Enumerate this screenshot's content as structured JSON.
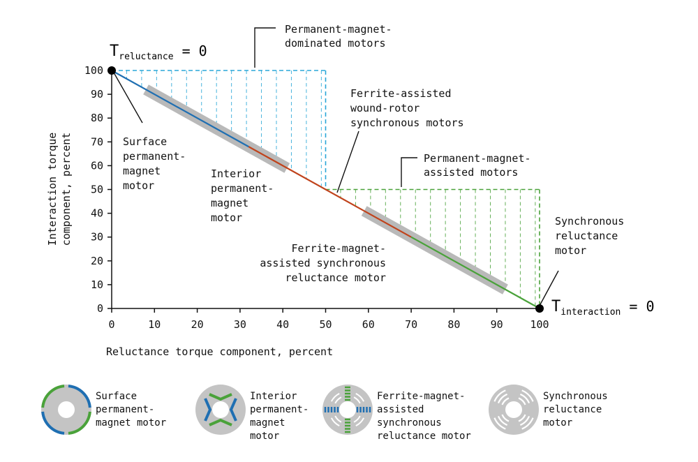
{
  "chart_data": {
    "type": "line",
    "xlabel": "Reluctance torque component, percent",
    "ylabel": "Interaction torque component, percent",
    "xlim": [
      0,
      100
    ],
    "ylim": [
      0,
      100
    ],
    "x_ticks": [
      0,
      10,
      20,
      30,
      40,
      50,
      60,
      70,
      80,
      90,
      100
    ],
    "y_ticks": [
      0,
      10,
      20,
      30,
      40,
      50,
      60,
      70,
      80,
      90,
      100
    ],
    "grid": false,
    "main_line": {
      "points": [
        [
          0,
          100
        ],
        [
          100,
          0
        ]
      ],
      "segments": [
        {
          "from": 0,
          "to": 32,
          "color": "#1f6fb2"
        },
        {
          "from": 32,
          "to": 59,
          "color": "#c0431c"
        },
        {
          "from": 59,
          "to": 70,
          "color": "#c0431c"
        },
        {
          "from": 70,
          "to": 100,
          "color": "#4aa23a"
        }
      ]
    },
    "operating_bands": [
      {
        "x_start": 8,
        "x_end": 41,
        "name": "interior-pm-band"
      },
      {
        "x_start": 59,
        "x_end": 92,
        "name": "ferrite-band"
      }
    ],
    "regions": [
      {
        "label": [
          "Permanent-magnet-",
          "dominated motors"
        ],
        "color": "#2aa7d8",
        "x_range": [
          0,
          50
        ],
        "y_top": 100,
        "hatch_x": [
          3.5,
          7,
          10.5,
          14,
          17.5,
          21,
          24.5,
          28,
          31.5,
          35,
          38.5,
          42,
          45.5,
          49
        ]
      },
      {
        "label": [
          "Permanent-magnet-",
          "assisted motors"
        ],
        "color": "#4aa23a",
        "x_range": [
          50,
          100
        ],
        "y_top": 50,
        "hatch_x": [
          53.5,
          57,
          60.5,
          64,
          67.5,
          71,
          74.5,
          78,
          81.5,
          85,
          88.5,
          92,
          95.5,
          99
        ]
      }
    ],
    "endpoints": [
      {
        "x": 0,
        "y": 100,
        "label_main": "T",
        "label_sub": "reluctance",
        "label_suffix": " = 0"
      },
      {
        "x": 100,
        "y": 0,
        "label_main": "T",
        "label_sub": "interaction",
        "label_suffix": " = 0"
      }
    ],
    "annotations": [
      {
        "name": "surface-pm-annotation",
        "lines": [
          "Surface",
          "permanent-",
          "magnet",
          "motor"
        ],
        "color": "#111111"
      },
      {
        "name": "interior-pm-annotation",
        "lines": [
          "Interior",
          "permanent-",
          "magnet",
          "motor"
        ],
        "color": "#111111"
      },
      {
        "name": "ferrite-wound-annotation",
        "lines": [
          "Ferrite-assisted",
          "wound-rotor",
          "synchronous motors"
        ],
        "color": "#c0431c"
      },
      {
        "name": "ferrite-magnet-annotation",
        "lines": [
          "Ferrite-magnet-",
          "assisted synchronous",
          "reluctance motor"
        ],
        "color": "#111111"
      },
      {
        "name": "synchronous-reluctance-annotation",
        "lines": [
          "Synchronous",
          "reluctance",
          "motor"
        ],
        "color": "#111111"
      }
    ]
  },
  "legend": [
    {
      "icon": "surface-pm-rotor-icon",
      "lines": [
        "Surface",
        "permanent-",
        "magnet motor"
      ]
    },
    {
      "icon": "interior-pm-rotor-icon",
      "lines": [
        "Interior",
        "permanent-",
        "magnet",
        "motor"
      ]
    },
    {
      "icon": "ferrite-rotor-icon",
      "lines": [
        "Ferrite-magnet-",
        "assisted",
        "synchronous",
        "reluctance motor"
      ]
    },
    {
      "icon": "synchronous-reluctance-rotor-icon",
      "lines": [
        "Synchronous",
        "reluctance",
        "motor"
      ]
    }
  ],
  "colors": {
    "blue": "#1f6fb2",
    "light_blue": "#2aa7d8",
    "red": "#c0431c",
    "green": "#4aa23a",
    "band_gray": "#b9b9b9",
    "rotor_gray": "#c4c4c4"
  }
}
